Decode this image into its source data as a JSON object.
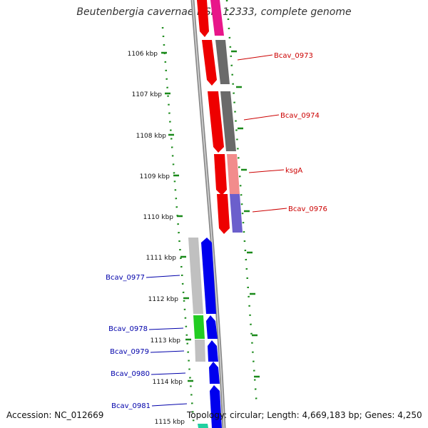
{
  "title": "Beutenbergia cavernae DSM 12333, complete genome",
  "footer": {
    "accession": "Accession: NC_012669",
    "topology": "Topology: circular; Length: 4,669,183 bp; Genes: 4,250"
  },
  "scale_labels": [
    "1106 kbp",
    "1107 kbp",
    "1108 kbp",
    "1109 kbp",
    "1110 kbp",
    "1111 kbp",
    "1112 kbp",
    "1113 kbp",
    "1114 kbp",
    "1115 kbp"
  ],
  "gene_labels_right": [
    "Bcav_0973",
    "Bcav_0974",
    "ksgA",
    "Bcav_0976"
  ],
  "gene_labels_left": [
    "Bcav_0977",
    "Bcav_0978",
    "Bcav_0979",
    "Bcav_0980",
    "Bcav_0981"
  ],
  "colors": {
    "forward_strand": "#ff0000",
    "reverse_strand": "#0000ff",
    "right_label": "#cc0000",
    "left_label": "#0000aa",
    "scale_tick": "#008000",
    "backbone": "#888888"
  }
}
